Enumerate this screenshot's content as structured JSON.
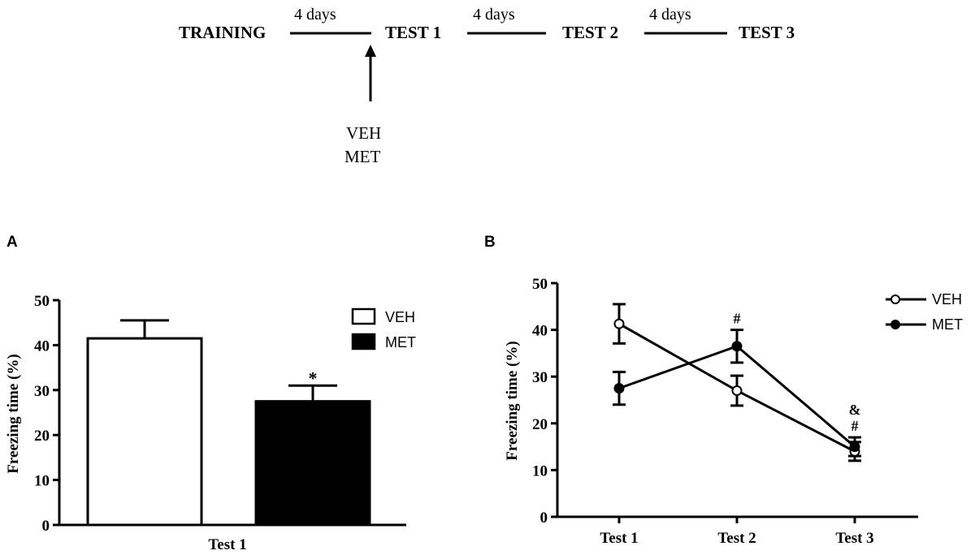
{
  "timeline": {
    "stages": [
      "TRAINING",
      "TEST 1",
      "TEST 2",
      "TEST 3"
    ],
    "intervals": [
      "4 days",
      "4 days",
      "4 days"
    ],
    "treatments": [
      "VEH",
      "MET"
    ]
  },
  "chart_data": [
    {
      "panel": "A",
      "type": "bar",
      "categories": [
        "Test 1"
      ],
      "series": [
        {
          "name": "VEH",
          "values": [
            41.5
          ],
          "error": [
            4.0
          ],
          "color": "#ffffff"
        },
        {
          "name": "MET",
          "values": [
            27.5
          ],
          "error": [
            3.5
          ],
          "color": "#000000"
        }
      ],
      "annotations": [
        {
          "series": "MET",
          "text": "*"
        }
      ],
      "xlabel": "Test 1",
      "ylabel": "Freezing time (%)",
      "ylim": [
        0,
        50
      ],
      "yticks": [
        "0",
        "10",
        "20",
        "30",
        "40",
        "50"
      ],
      "legend": "top-right"
    },
    {
      "panel": "B",
      "type": "line",
      "categories": [
        "Test 1",
        "Test 2",
        "Test 3"
      ],
      "series": [
        {
          "name": "VEH",
          "values": [
            41.3,
            27.0,
            14.0
          ],
          "error": [
            4.2,
            3.2,
            2.0
          ],
          "marker": "open-circle"
        },
        {
          "name": "MET",
          "values": [
            27.5,
            36.5,
            15.0
          ],
          "error": [
            3.5,
            3.5,
            2.0
          ],
          "marker": "filled-circle"
        }
      ],
      "annotations": [
        {
          "category": "Test 2",
          "text": "#"
        },
        {
          "category": "Test 3",
          "text": "&"
        },
        {
          "category": "Test 3",
          "text": "#"
        }
      ],
      "ylabel": "Freezing time (%)",
      "ylim": [
        0,
        50
      ],
      "yticks": [
        "0",
        "10",
        "20",
        "30",
        "40",
        "50"
      ],
      "legend": "top-right"
    }
  ]
}
